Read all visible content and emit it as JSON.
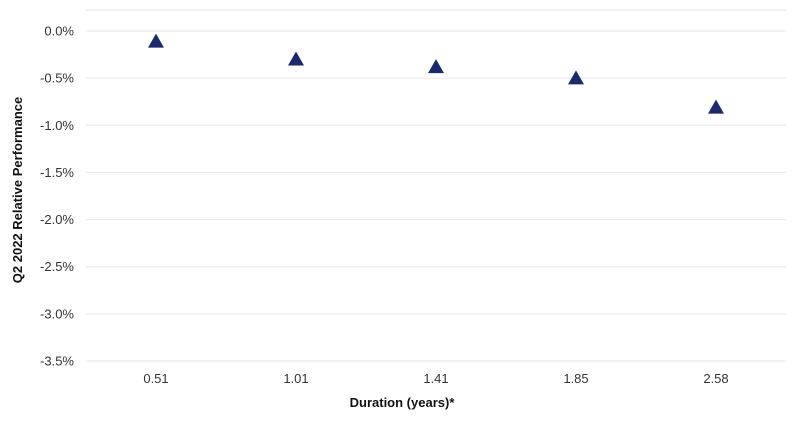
{
  "chart_data": {
    "type": "scatter",
    "categories": [
      "0.51",
      "1.01",
      "1.41",
      "1.85",
      "2.58"
    ],
    "series": [
      {
        "values": [
          -0.12,
          -0.31,
          -0.39,
          -0.51,
          -0.82
        ]
      }
    ],
    "xlabel": "Duration (years)*",
    "ylabel": "Q2 2022 Relative Performance",
    "ylim": [
      -3.5,
      0.0
    ],
    "y_ticks": [
      0.0,
      -0.5,
      -1.0,
      -1.5,
      -2.0,
      -2.5,
      -3.0,
      -3.5
    ],
    "y_tick_labels": [
      "0.0%",
      "-0.5%",
      "-1.0%",
      "-1.5%",
      "-2.0%",
      "-2.5%",
      "-3.0%",
      "-3.5%"
    ],
    "marker": "triangle",
    "marker_color": "#1b2a6b",
    "grid": true,
    "legend": "none"
  }
}
